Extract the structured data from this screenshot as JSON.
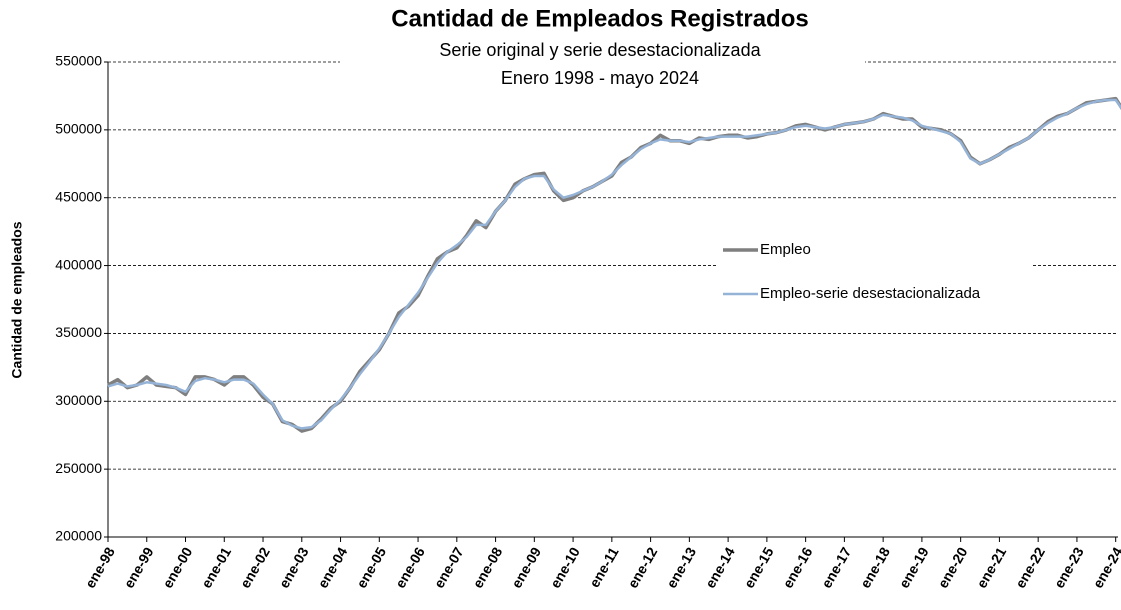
{
  "chart_data": {
    "type": "line",
    "title": "Cantidad de Empleados Registrados",
    "subtitle": [
      "Serie original y serie desestacionalizada",
      "Enero 1998 - mayo 2024"
    ],
    "y_label": "Cantidad de empleados",
    "categories": [
      "ene-98",
      null,
      null,
      null,
      "ene-99",
      null,
      null,
      null,
      "ene-00",
      null,
      null,
      null,
      "ene-01",
      null,
      null,
      null,
      "ene-02",
      null,
      null,
      null,
      "ene-03",
      null,
      null,
      null,
      "ene-04",
      null,
      null,
      null,
      "ene-05",
      null,
      null,
      null,
      "ene-06",
      null,
      null,
      null,
      "ene-07",
      null,
      null,
      null,
      "ene-08",
      null,
      null,
      null,
      "ene-09",
      null,
      null,
      null,
      "ene-10",
      null,
      null,
      null,
      "ene-11",
      null,
      null,
      null,
      "ene-12",
      null,
      null,
      null,
      "ene-13",
      null,
      null,
      null,
      "ene-14",
      null,
      null,
      null,
      "ene-15",
      null,
      null,
      null,
      "ene-16",
      null,
      null,
      null,
      "ene-17",
      null,
      null,
      null,
      "ene-18",
      null,
      null,
      null,
      "ene-19",
      null,
      null,
      null,
      "ene-20",
      null,
      null,
      null,
      "ene-21",
      null,
      null,
      null,
      "ene-22",
      null,
      null,
      null,
      "ene-23",
      null,
      null,
      null,
      "ene-24",
      null
    ],
    "series": [
      {
        "name": "Empleo",
        "color": "#7f7f7f",
        "values": [
          312000,
          316000,
          310000,
          312000,
          318000,
          312000,
          311000,
          310000,
          305000,
          318000,
          318000,
          316000,
          312000,
          318000,
          318000,
          312000,
          303000,
          298000,
          285000,
          283000,
          278000,
          280000,
          287000,
          295000,
          300000,
          310000,
          322000,
          330000,
          338000,
          350000,
          365000,
          370000,
          378000,
          392000,
          405000,
          410000,
          413000,
          422000,
          433000,
          428000,
          440000,
          448000,
          460000,
          464000,
          467000,
          468000,
          455000,
          448000,
          450000,
          455000,
          458000,
          462000,
          466000,
          476000,
          480000,
          487000,
          490000,
          496000,
          492000,
          492000,
          490000,
          494000,
          493000,
          495000,
          496000,
          496000,
          494000,
          495000,
          497000,
          498000,
          500000,
          503000,
          504000,
          502000,
          500000,
          502000,
          504000,
          505000,
          506000,
          508000,
          512000,
          510000,
          508000,
          508000,
          502000,
          501000,
          500000,
          497000,
          492000,
          480000,
          475000,
          478000,
          482000,
          487000,
          490000,
          494000,
          500000,
          506000,
          510000,
          512000,
          516000,
          520000,
          521000,
          522000,
          523000,
          512000
        ]
      },
      {
        "name": "Empleo-serie desestacionalizada",
        "color": "#95b3d7",
        "values": [
          311000,
          313000,
          311000,
          312000,
          314000,
          313000,
          312000,
          310000,
          307000,
          315000,
          317000,
          316000,
          314000,
          316000,
          316000,
          313000,
          305000,
          298000,
          286000,
          282000,
          280000,
          281000,
          286000,
          294000,
          301000,
          310000,
          320000,
          329000,
          339000,
          350000,
          362000,
          371000,
          380000,
          391000,
          402000,
          410000,
          415000,
          421000,
          430000,
          430000,
          440000,
          448000,
          458000,
          464000,
          466000,
          466000,
          456000,
          450000,
          452000,
          455000,
          458000,
          462000,
          467000,
          474000,
          480000,
          486000,
          490000,
          493000,
          492000,
          492000,
          491000,
          493000,
          494000,
          495000,
          495000,
          495000,
          495000,
          496000,
          497000,
          498000,
          500000,
          502000,
          503000,
          502000,
          501000,
          502000,
          504000,
          505000,
          506000,
          508000,
          511000,
          510000,
          509000,
          507000,
          503000,
          501000,
          499000,
          497000,
          491000,
          479000,
          475000,
          478000,
          482000,
          486000,
          490000,
          494000,
          500000,
          505000,
          509000,
          512000,
          516000,
          519000,
          521000,
          522000,
          522000,
          512000
        ]
      }
    ],
    "ylim": [
      200000,
      550000
    ],
    "yticks": [
      200000,
      250000,
      300000,
      350000,
      400000,
      450000,
      500000,
      550000
    ],
    "grid": true,
    "legend": "center-right"
  }
}
